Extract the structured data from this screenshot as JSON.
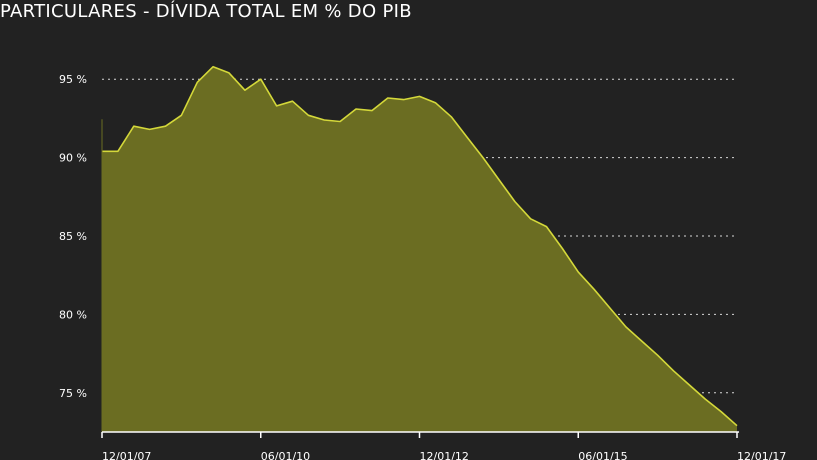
{
  "chart_data": {
    "type": "area",
    "title": "PARTICULARES - DÍVIDA TOTAL EM % DO PIB",
    "xlabel": "",
    "ylabel": "",
    "x_tick_labels": [
      "12/01/07",
      "06/01/10",
      "12/01/12",
      "06/01/15",
      "12/01/17"
    ],
    "y_ticks": [
      {
        "value": 75,
        "label": "75 %"
      },
      {
        "value": 80,
        "label": "80 %"
      },
      {
        "value": 85,
        "label": "85 %"
      },
      {
        "value": 90,
        "label": "90 %"
      },
      {
        "value": 95,
        "label": "95 %"
      }
    ],
    "ylim": [
      72.5,
      97.5
    ],
    "grid": "horizontal dotted",
    "legend": "none",
    "colors": {
      "background": "#222222",
      "fill": "#6b6d22",
      "line": "#d4d83a",
      "grid": "#d8d8d8",
      "axis": "#ffffff",
      "text": "#ffffff"
    },
    "series": [
      {
        "x": [
          "12/01/07",
          "03/01/08",
          "06/01/08",
          "09/01/08",
          "12/01/08",
          "03/01/09",
          "06/01/09",
          "09/01/09",
          "12/01/09",
          "03/01/10",
          "06/01/10",
          "09/01/10",
          "12/01/10",
          "03/01/11",
          "06/01/11",
          "09/01/11",
          "12/01/11",
          "03/01/12",
          "06/01/12",
          "09/01/12",
          "12/01/12",
          "03/01/13",
          "06/01/13",
          "09/01/13",
          "12/01/13",
          "03/01/14",
          "06/01/14",
          "09/01/14",
          "12/01/14",
          "03/01/15",
          "06/01/15",
          "09/01/15",
          "12/01/15",
          "03/01/16",
          "06/01/16",
          "09/01/16",
          "12/01/16",
          "03/01/17",
          "06/01/17",
          "09/01/17",
          "12/01/17"
        ],
        "values": [
          90.4,
          90.4,
          92.0,
          91.8,
          92.0,
          92.7,
          94.8,
          95.8,
          95.4,
          94.3,
          95.0,
          93.3,
          93.6,
          92.7,
          92.4,
          92.3,
          93.1,
          93.0,
          93.8,
          93.7,
          93.9,
          93.5,
          92.6,
          91.3,
          90.0,
          88.6,
          87.2,
          86.1,
          85.6,
          84.2,
          82.7,
          81.6,
          80.4,
          79.2,
          78.3,
          77.4,
          76.4,
          75.5,
          74.6,
          73.8,
          72.9
        ]
      }
    ]
  }
}
